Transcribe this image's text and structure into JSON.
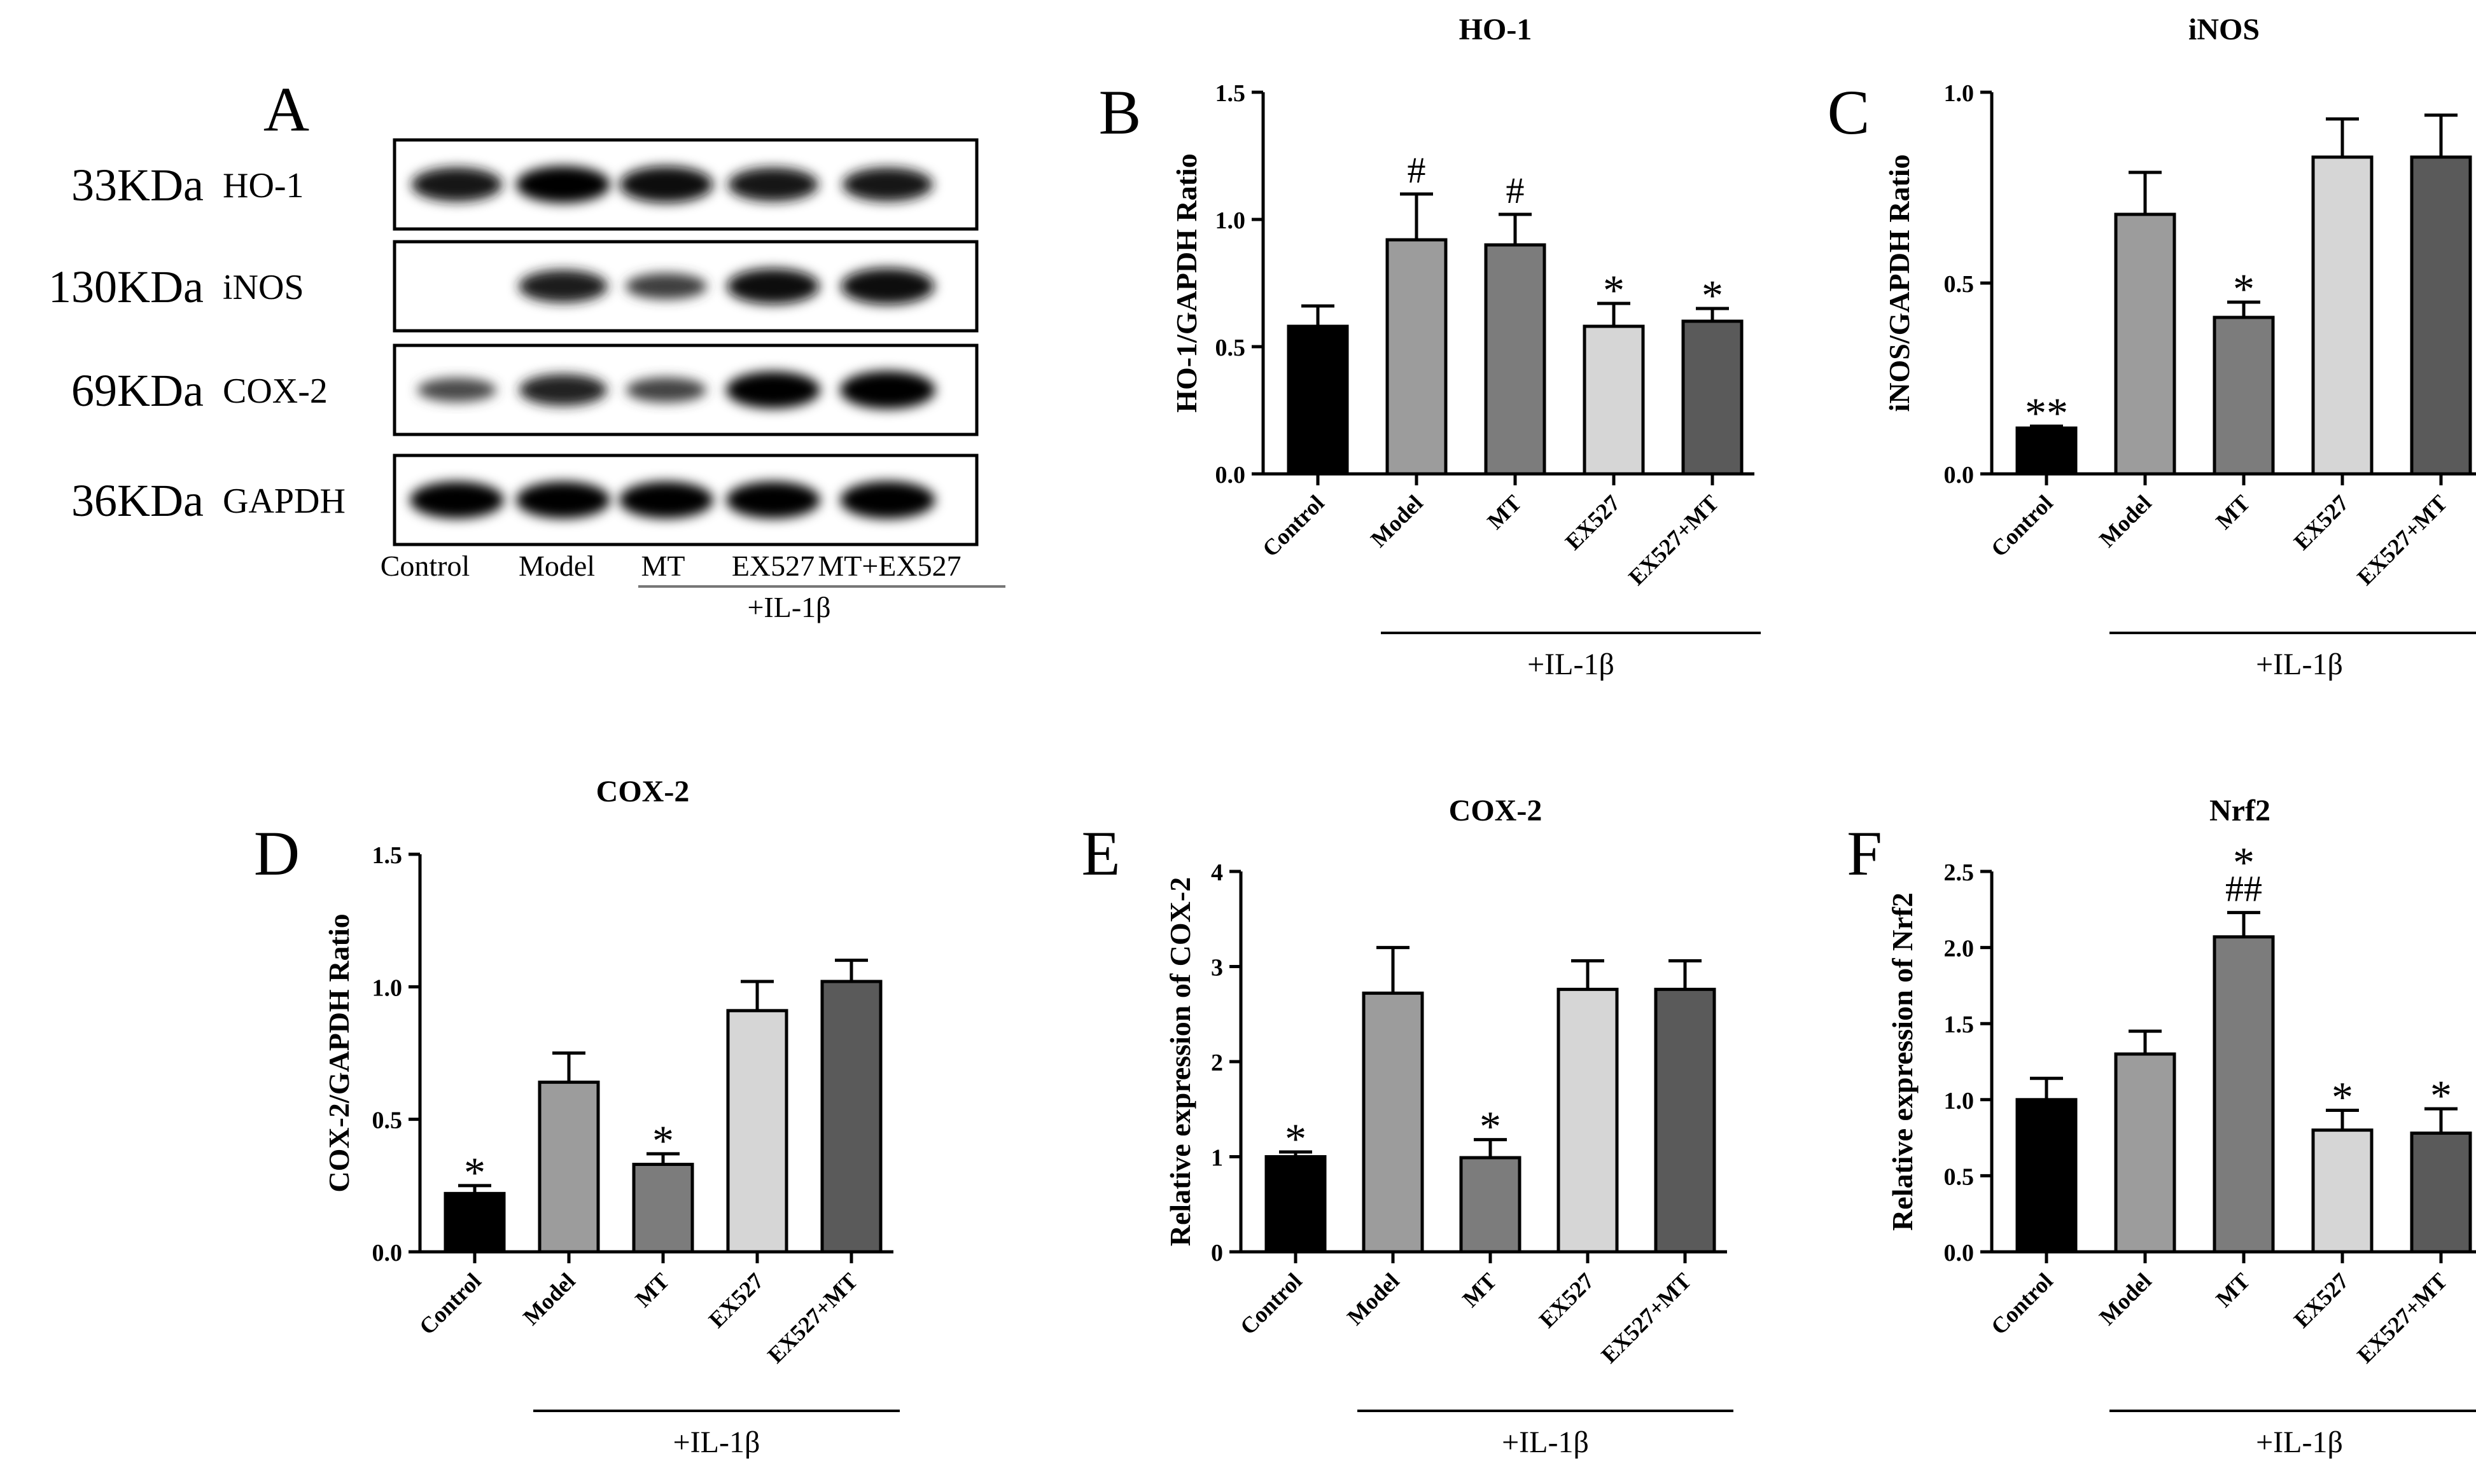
{
  "chart_data": [
    {
      "panel": "A",
      "type": "western_blot",
      "rows": [
        {
          "size": "33KDa",
          "protein": "HO-1"
        },
        {
          "size": "130KDa",
          "protein": "iNOS"
        },
        {
          "size": "69KDa",
          "protein": "COX-2"
        },
        {
          "size": "36KDa",
          "protein": "GAPDH"
        }
      ],
      "lanes": [
        "Control",
        "Model",
        "MT",
        "EX527",
        "MT+EX527"
      ],
      "treatment": "+IL-1β",
      "band_intensity": [
        [
          0.82,
          0.95,
          0.92,
          0.8,
          0.8
        ],
        [
          0.05,
          0.75,
          0.45,
          0.88,
          0.92
        ],
        [
          0.35,
          0.7,
          0.4,
          0.95,
          1.0
        ],
        [
          0.95,
          0.95,
          0.95,
          0.95,
          0.98
        ]
      ]
    },
    {
      "panel": "B",
      "type": "bar",
      "title": "HO-1",
      "ylabel": "HO-1/GAPDH Ratio",
      "categories": [
        "Control",
        "Model",
        "MT",
        "EX527",
        "EX527+MT"
      ],
      "values": [
        0.58,
        0.92,
        0.9,
        0.58,
        0.6
      ],
      "errors": [
        0.08,
        0.18,
        0.12,
        0.09,
        0.05
      ],
      "annotations": [
        "",
        "#",
        "#",
        "*",
        "*"
      ],
      "ylim": [
        0,
        1.5
      ],
      "yticks": [
        "0.0",
        "0.5",
        "1.0",
        "1.5"
      ],
      "bar_colors": [
        "#000000",
        "#9c9c9c",
        "#7c7c7c",
        "#d6d6d6",
        "#5a5a5a"
      ],
      "treatment": "+IL-1β"
    },
    {
      "panel": "C",
      "type": "bar",
      "title": "iNOS",
      "ylabel": "iNOS/GAPDH Ratio",
      "categories": [
        "Control",
        "Model",
        "MT",
        "EX527",
        "EX527+MT"
      ],
      "values": [
        0.12,
        0.68,
        0.41,
        0.83,
        0.83
      ],
      "errors": [
        0.005,
        0.11,
        0.04,
        0.1,
        0.11
      ],
      "annotations": [
        "**",
        "",
        "*",
        "",
        ""
      ],
      "ylim": [
        0,
        1.0
      ],
      "yticks": [
        "0.0",
        "0.5",
        "1.0"
      ],
      "bar_colors": [
        "#000000",
        "#9c9c9c",
        "#7c7c7c",
        "#d6d6d6",
        "#5a5a5a"
      ],
      "treatment": "+IL-1β"
    },
    {
      "panel": "D",
      "type": "bar",
      "title": "COX-2",
      "ylabel": "COX-2/GAPDH Ratio",
      "categories": [
        "Control",
        "Model",
        "MT",
        "EX527",
        "EX527+MT"
      ],
      "values": [
        0.22,
        0.64,
        0.33,
        0.91,
        1.02
      ],
      "errors": [
        0.03,
        0.11,
        0.04,
        0.11,
        0.08
      ],
      "annotations": [
        "*",
        "",
        "*",
        "",
        ""
      ],
      "ylim": [
        0,
        1.5
      ],
      "yticks": [
        "0.0",
        "0.5",
        "1.0",
        "1.5"
      ],
      "bar_colors": [
        "#000000",
        "#9c9c9c",
        "#7c7c7c",
        "#d6d6d6",
        "#5a5a5a"
      ],
      "treatment": "+IL-1β"
    },
    {
      "panel": "E",
      "type": "bar",
      "title": "COX-2",
      "ylabel": "Relative expression of COX-2",
      "categories": [
        "Control",
        "Model",
        "MT",
        "EX527",
        "EX527+MT"
      ],
      "values": [
        1.0,
        2.72,
        0.99,
        2.76,
        2.76
      ],
      "errors": [
        0.05,
        0.48,
        0.19,
        0.3,
        0.3
      ],
      "annotations": [
        "*",
        "",
        "*",
        "",
        ""
      ],
      "ylim": [
        0,
        4
      ],
      "yticks": [
        "0",
        "1",
        "2",
        "3",
        "4"
      ],
      "bar_colors": [
        "#000000",
        "#9c9c9c",
        "#7c7c7c",
        "#d6d6d6",
        "#5a5a5a"
      ],
      "treatment": "+IL-1β"
    },
    {
      "panel": "F",
      "type": "bar",
      "title": "Nrf2",
      "ylabel": "Relative expression of Nrf2",
      "categories": [
        "Control",
        "Model",
        "MT",
        "EX527",
        "EX527+MT"
      ],
      "values": [
        1.0,
        1.3,
        2.07,
        0.8,
        0.78
      ],
      "errors": [
        0.14,
        0.15,
        0.16,
        0.13,
        0.16
      ],
      "annotations": [
        "",
        "",
        "*\n##",
        "*",
        "*"
      ],
      "ylim": [
        0,
        2.5
      ],
      "yticks": [
        "0.0",
        "0.5",
        "1.0",
        "1.5",
        "2.0",
        "2.5"
      ],
      "bar_colors": [
        "#000000",
        "#9c9c9c",
        "#7c7c7c",
        "#d6d6d6",
        "#5a5a5a"
      ],
      "treatment": "+IL-1β"
    }
  ]
}
